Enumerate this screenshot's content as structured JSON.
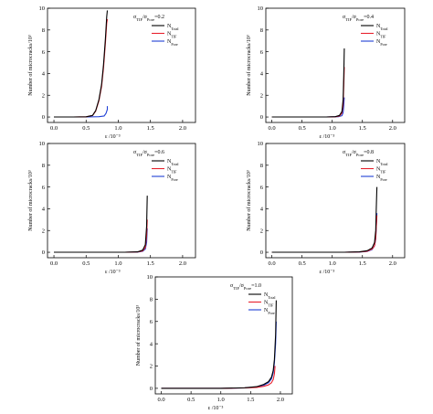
{
  "chart_data": [
    {
      "type": "line",
      "annotation": {
        "main": "σ_{TIF}/σ_{Pore}=0.2"
      },
      "xlabel": "ε /10⁻³",
      "ylabel": "Number of microcracks/10³",
      "xlim": [
        -0.1,
        2.2
      ],
      "ylim": [
        -0.5,
        10
      ],
      "xticks": [
        "0.0",
        "0.5",
        "1.0",
        "1.5",
        "2.0"
      ],
      "yticks": [
        "0",
        "2",
        "4",
        "6",
        "8",
        "10"
      ],
      "legend": [
        {
          "main": "N",
          "sub": "Total",
          "color": "#000000"
        },
        {
          "main": "N",
          "sub": "TIF",
          "color": "#e8212e"
        },
        {
          "main": "N",
          "sub": "Pore",
          "color": "#1f3fd6"
        }
      ],
      "series": [
        {
          "color": "#000000",
          "x": [
            0.0,
            0.3,
            0.5,
            0.6,
            0.65,
            0.7,
            0.74,
            0.77,
            0.8,
            0.82,
            0.83
          ],
          "y": [
            0,
            0,
            0.02,
            0.15,
            0.6,
            1.6,
            3.0,
            4.8,
            7.2,
            9.2,
            9.8
          ]
        },
        {
          "color": "#e8212e",
          "x": [
            0.0,
            0.3,
            0.5,
            0.6,
            0.65,
            0.7,
            0.74,
            0.77,
            0.8,
            0.82,
            0.83
          ],
          "y": [
            0,
            0,
            0.02,
            0.14,
            0.55,
            1.5,
            2.8,
            4.5,
            6.8,
            8.6,
            9.0
          ]
        },
        {
          "color": "#1f3fd6",
          "x": [
            0.0,
            0.5,
            0.7,
            0.78,
            0.81,
            0.83,
            0.83
          ],
          "y": [
            0,
            0,
            0.03,
            0.1,
            0.35,
            0.7,
            1.0
          ]
        }
      ]
    },
    {
      "type": "line",
      "annotation": {
        "main": "σ_{TIF}/σ_{Pore}=0.4"
      },
      "xlabel": "ε /10⁻³",
      "ylabel": "Number of microcracks/10³",
      "xlim": [
        -0.1,
        2.2
      ],
      "ylim": [
        -0.5,
        10
      ],
      "xticks": [
        "0.0",
        "0.5",
        "1.0",
        "1.5",
        "2.0"
      ],
      "yticks": [
        "0",
        "2",
        "4",
        "6",
        "8",
        "10"
      ],
      "legend": [
        {
          "main": "N",
          "sub": "Total",
          "color": "#000000"
        },
        {
          "main": "N",
          "sub": "TIF",
          "color": "#e8212e"
        },
        {
          "main": "N",
          "sub": "Pore",
          "color": "#1f3fd6"
        }
      ],
      "series": [
        {
          "color": "#000000",
          "x": [
            0.0,
            0.9,
            1.05,
            1.12,
            1.16,
            1.18,
            1.19,
            1.2
          ],
          "y": [
            0,
            0,
            0.03,
            0.15,
            0.5,
            1.6,
            3.8,
            6.3
          ]
        },
        {
          "color": "#e8212e",
          "x": [
            0.0,
            0.9,
            1.05,
            1.12,
            1.16,
            1.18,
            1.19,
            1.2
          ],
          "y": [
            0,
            0,
            0.02,
            0.1,
            0.35,
            1.1,
            2.8,
            4.6
          ]
        },
        {
          "color": "#1f3fd6",
          "x": [
            0.0,
            0.9,
            1.1,
            1.16,
            1.18,
            1.19,
            1.2
          ],
          "y": [
            0,
            0,
            0.03,
            0.12,
            0.4,
            1.0,
            1.8
          ]
        }
      ]
    },
    {
      "type": "line",
      "annotation": {
        "main": "σ_{TIF}/σ_{Pore}=0.6"
      },
      "xlabel": "ε /10⁻³",
      "ylabel": "Number of microcracks/10³",
      "xlim": [
        -0.1,
        2.2
      ],
      "ylim": [
        -0.5,
        10
      ],
      "xticks": [
        "0.0",
        "0.5",
        "1.0",
        "1.5",
        "2.0"
      ],
      "yticks": [
        "0",
        "2",
        "4",
        "6",
        "8",
        "10"
      ],
      "legend": [
        {
          "main": "N",
          "sub": "Total",
          "color": "#000000"
        },
        {
          "main": "N",
          "sub": "TIF",
          "color": "#e8212e"
        },
        {
          "main": "N",
          "sub": "Pore",
          "color": "#1f3fd6"
        }
      ],
      "series": [
        {
          "color": "#000000",
          "x": [
            0.0,
            1.1,
            1.3,
            1.38,
            1.42,
            1.44,
            1.45
          ],
          "y": [
            0,
            0,
            0.04,
            0.2,
            0.7,
            2.4,
            5.2
          ]
        },
        {
          "color": "#e8212e",
          "x": [
            0.0,
            1.1,
            1.3,
            1.38,
            1.42,
            1.44,
            1.45
          ],
          "y": [
            0,
            0,
            0.03,
            0.12,
            0.45,
            1.5,
            3.0
          ]
        },
        {
          "color": "#1f3fd6",
          "x": [
            0.0,
            1.1,
            1.3,
            1.38,
            1.42,
            1.44,
            1.45
          ],
          "y": [
            0,
            0,
            0.02,
            0.1,
            0.3,
            0.9,
            2.2
          ]
        }
      ]
    },
    {
      "type": "line",
      "annotation": {
        "main": "σ_{TIF}/σ_{Pore}=0.8"
      },
      "xlabel": "ε /10⁻³",
      "ylabel": "Number of microcracks/10³",
      "xlim": [
        -0.1,
        2.2
      ],
      "ylim": [
        -0.5,
        10
      ],
      "xticks": [
        "0.0",
        "0.5",
        "1.0",
        "1.5",
        "2.0"
      ],
      "yticks": [
        "0",
        "2",
        "4",
        "6",
        "8",
        "10"
      ],
      "legend": [
        {
          "main": "N",
          "sub": "Total",
          "color": "#000000"
        },
        {
          "main": "N",
          "sub": "TIF",
          "color": "#e8212e"
        },
        {
          "main": "N",
          "sub": "Pore",
          "color": "#1f3fd6"
        }
      ],
      "series": [
        {
          "color": "#000000",
          "x": [
            0.0,
            1.2,
            1.45,
            1.58,
            1.66,
            1.7,
            1.72,
            1.73,
            1.74
          ],
          "y": [
            0,
            0,
            0.04,
            0.15,
            0.4,
            0.9,
            2.0,
            4.0,
            6.0
          ]
        },
        {
          "color": "#e8212e",
          "x": [
            0.0,
            1.2,
            1.45,
            1.58,
            1.66,
            1.7,
            1.72,
            1.73,
            1.74
          ],
          "y": [
            0,
            0,
            0.03,
            0.1,
            0.3,
            0.6,
            1.3,
            2.3,
            3.4
          ]
        },
        {
          "color": "#1f3fd6",
          "x": [
            0.0,
            1.2,
            1.45,
            1.58,
            1.66,
            1.7,
            1.72,
            1.73,
            1.74
          ],
          "y": [
            0,
            0,
            0.02,
            0.08,
            0.25,
            0.6,
            1.2,
            2.3,
            3.6
          ]
        }
      ]
    },
    {
      "type": "line",
      "annotation": {
        "main": "σ_{TIF}/σ_{Pore}=1.0"
      },
      "xlabel": "ε /10⁻³",
      "ylabel": "Number of microcracks/10³",
      "xlim": [
        -0.1,
        2.2
      ],
      "ylim": [
        -0.5,
        10
      ],
      "xticks": [
        "0.0",
        "0.5",
        "1.0",
        "1.5",
        "2.0"
      ],
      "yticks": [
        "0",
        "2",
        "4",
        "6",
        "8",
        "10"
      ],
      "legend": [
        {
          "main": "N",
          "sub": "Total",
          "color": "#000000"
        },
        {
          "main": "N",
          "sub": "TIF",
          "color": "#e8212e"
        },
        {
          "main": "N",
          "sub": "Pore",
          "color": "#1f3fd6"
        }
      ],
      "series": [
        {
          "color": "#000000",
          "x": [
            0.0,
            1.0,
            1.4,
            1.6,
            1.72,
            1.8,
            1.85,
            1.88,
            1.9,
            1.92,
            1.93
          ],
          "y": [
            0,
            0,
            0.05,
            0.15,
            0.35,
            0.6,
            1.0,
            1.6,
            2.6,
            4.8,
            7.9
          ]
        },
        {
          "color": "#e8212e",
          "x": [
            0.0,
            1.0,
            1.4,
            1.6,
            1.72,
            1.8,
            1.85,
            1.88,
            1.9,
            1.91
          ],
          "y": [
            0,
            0,
            0.03,
            0.08,
            0.18,
            0.3,
            0.5,
            0.8,
            1.3,
            2.0
          ]
        },
        {
          "color": "#1f3fd6",
          "x": [
            0.0,
            1.0,
            1.4,
            1.6,
            1.72,
            1.8,
            1.85,
            1.88,
            1.9,
            1.92,
            1.93
          ],
          "y": [
            0,
            0,
            0.04,
            0.12,
            0.28,
            0.5,
            0.85,
            1.4,
            2.3,
            4.0,
            6.0
          ]
        }
      ]
    }
  ]
}
